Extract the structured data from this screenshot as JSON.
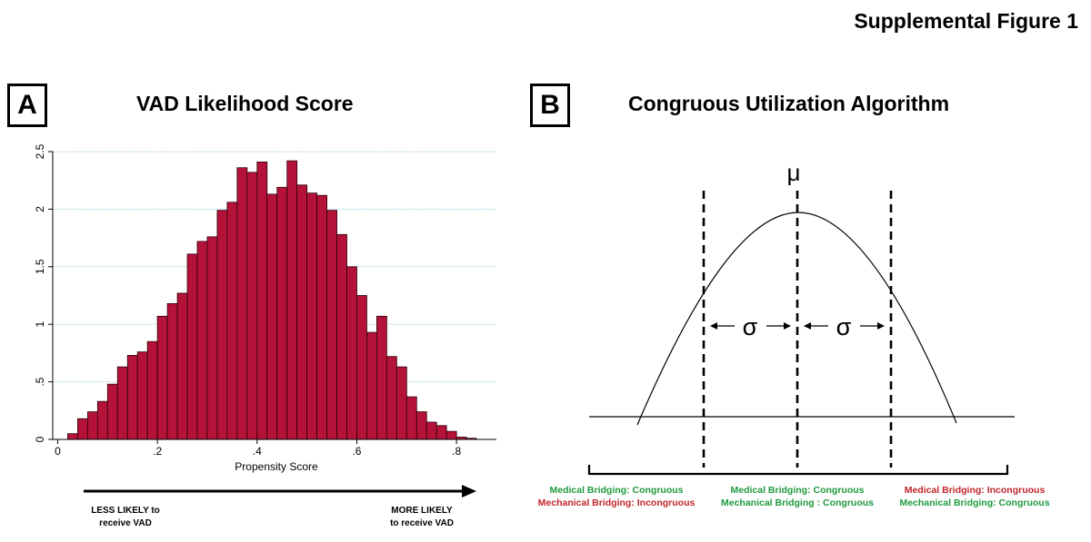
{
  "figure_title": "Supplemental Figure 1",
  "panel_a": {
    "letter": "A",
    "title": "VAD Likelihood Score",
    "less_likely": [
      "LESS LIKELY to",
      "receive VAD"
    ],
    "more_likely": [
      "MORE LIKELY",
      "to receive VAD"
    ]
  },
  "panel_b": {
    "letter": "B",
    "title": "Congruous Utilization Algorithm",
    "mu_label": "μ",
    "sigma_label": "σ",
    "regions": [
      {
        "line1": "Medical Bridging: Congruous",
        "line1_color": "green",
        "line2": "Mechanical Bridging: Incongruous",
        "line2_color": "red"
      },
      {
        "line1": "Medical Bridging: Congruous",
        "line1_color": "green",
        "line2": "Mechanical Bridging : Congruous",
        "line2_color": "green"
      },
      {
        "line1": "Medical Bridging: Incongruous",
        "line1_color": "red",
        "line2": "Mechanical Bridging: Congruous",
        "line2_color": "green"
      }
    ]
  },
  "colors": {
    "bar_fill": "#b5123a",
    "bar_stroke": "#2a0008",
    "grid": "#9ec9de",
    "green": "#1e9a3c",
    "red": "#c0242c"
  },
  "chart_data": [
    {
      "type": "bar",
      "title": "VAD Likelihood Score",
      "xlabel": "Propensity Score",
      "ylabel": "",
      "xlim": [
        -0.01,
        0.88
      ],
      "ylim": [
        0,
        2.5
      ],
      "bin_width": 0.02,
      "x_ticks": [
        {
          "value": 0,
          "label": "0"
        },
        {
          "value": 0.2,
          "label": ".2"
        },
        {
          "value": 0.4,
          "label": ".4"
        },
        {
          "value": 0.6,
          "label": ".6"
        },
        {
          "value": 0.8,
          "label": ".8"
        }
      ],
      "y_ticks": [
        {
          "value": 0,
          "label": "0"
        },
        {
          "value": 0.5,
          "label": ".5"
        },
        {
          "value": 1,
          "label": "1"
        },
        {
          "value": 1.5,
          "label": "1.5"
        },
        {
          "value": 2,
          "label": "2"
        },
        {
          "value": 2.5,
          "label": "2.5"
        }
      ],
      "grid": "horizontal",
      "bin_starts": [
        0.02,
        0.04,
        0.06,
        0.08,
        0.1,
        0.12,
        0.14,
        0.16,
        0.18,
        0.2,
        0.22,
        0.24,
        0.26,
        0.28,
        0.3,
        0.32,
        0.34,
        0.36,
        0.38,
        0.4,
        0.42,
        0.44,
        0.46,
        0.48,
        0.5,
        0.52,
        0.54,
        0.56,
        0.58,
        0.6,
        0.62,
        0.64,
        0.66,
        0.68,
        0.7,
        0.72,
        0.74,
        0.76,
        0.78,
        0.8,
        0.82
      ],
      "values": [
        0.05,
        0.18,
        0.24,
        0.33,
        0.48,
        0.63,
        0.73,
        0.76,
        0.85,
        1.07,
        1.18,
        1.27,
        1.61,
        1.72,
        1.76,
        1.99,
        2.06,
        2.36,
        2.32,
        2.41,
        2.13,
        2.19,
        2.42,
        2.21,
        2.14,
        2.12,
        1.99,
        1.78,
        1.5,
        1.25,
        0.93,
        1.07,
        0.72,
        0.63,
        0.37,
        0.24,
        0.15,
        0.12,
        0.07,
        0.02,
        0.01
      ]
    },
    {
      "type": "line",
      "title": "Congruous Utilization Algorithm",
      "xlabel": "",
      "ylabel": "",
      "description_markers": [
        "mean",
        "mean - sigma",
        "mean + sigma"
      ]
    }
  ]
}
